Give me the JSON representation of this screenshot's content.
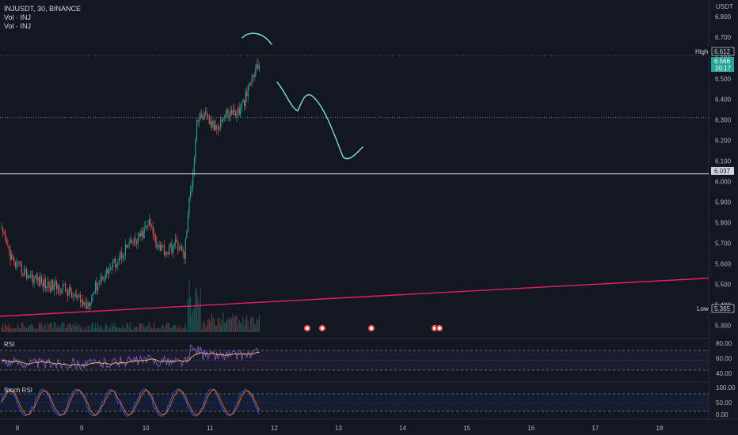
{
  "header": {
    "symbol": "INJUSDT, 30, BINANCE",
    "vol_line_1": "Vol · INJ",
    "vol_line_2": "Vol · INJ"
  },
  "price_axis": {
    "currency": "USDT",
    "ticks": [
      "6.800",
      "6.700",
      "6.600",
      "6.500",
      "6.400",
      "6.300",
      "6.200",
      "6.100",
      "6.000",
      "5.900",
      "5.800",
      "5.700",
      "5.600",
      "5.500",
      "5.400",
      "5.300"
    ]
  },
  "tags": {
    "high_label": "High",
    "high_value": "6.612",
    "last_value": "6.566",
    "countdown": "20:17",
    "line_value": "6.037",
    "low_label": "Low",
    "low_value": "5.365"
  },
  "rsi_pane": {
    "label": "RSI",
    "ticks": [
      "80.00",
      "60.00",
      "40.00"
    ]
  },
  "stoch_pane": {
    "label": "Stoch RSI",
    "ticks": [
      "100.00",
      "50.00",
      "0.00"
    ]
  },
  "time_axis": {
    "labels": [
      "8",
      "9",
      "10",
      "11",
      "12",
      "13",
      "14",
      "15",
      "16",
      "17",
      "18"
    ]
  },
  "colors": {
    "background": "#131722",
    "up": "#26a69a",
    "down": "#ef5350",
    "trendline": "#e91e63",
    "drawing": "#7fe3c9",
    "rsi": "#7e57c2",
    "rsi_ma": "#f7c35c",
    "stoch_k": "#2962ff",
    "stoch_d": "#ff6d00"
  },
  "chart_data": {
    "type": "candlestick",
    "symbol": "INJUSDT",
    "timeframe": "30",
    "exchange": "BINANCE",
    "y_range": [
      5.26,
      6.82
    ],
    "x_days": [
      "8",
      "9",
      "10",
      "11",
      "12",
      "13",
      "14",
      "15",
      "16",
      "17",
      "18"
    ],
    "high": 6.612,
    "low": 5.365,
    "last": 6.566,
    "horizontal_line": 6.037,
    "dotted_lines": [
      6.612,
      6.31
    ],
    "trendline": {
      "from": 5.345,
      "to": 5.53
    },
    "rsi_levels": [
      70,
      50,
      30
    ],
    "stoch_levels": [
      80,
      50,
      20
    ]
  }
}
